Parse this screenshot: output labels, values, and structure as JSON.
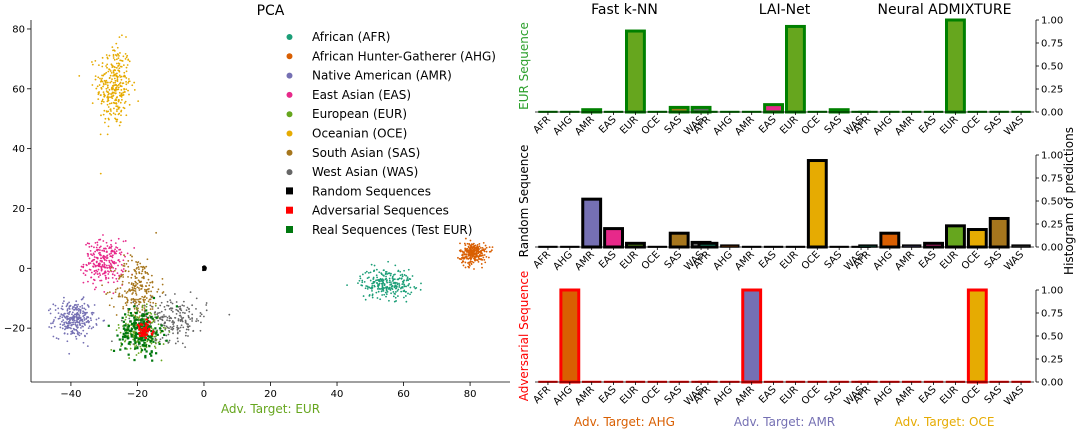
{
  "colors": {
    "AFR": "#1b9e77",
    "AHG": "#d95f02",
    "AMR": "#7570b3",
    "EAS": "#e7298a",
    "EUR": "#66a61e",
    "OCE": "#e6ab02",
    "SAS": "#a6761d",
    "WAS": "#666666",
    "random": "#000000",
    "adversarial": "#ff0000",
    "real": "#00780f"
  },
  "chart_data": [
    {
      "type": "scatter",
      "title": "PCA",
      "xlabel": "Adv. Target: EUR",
      "xlabel_color": "#66a61e",
      "xlim": [
        -52,
        92
      ],
      "ylim": [
        -38,
        83
      ],
      "xticks": [
        -40,
        -20,
        0,
        20,
        40,
        60,
        80
      ],
      "yticks": [
        -20,
        0,
        20,
        40,
        60,
        80
      ],
      "legend_position": "top-right",
      "legend": [
        {
          "label": "African (AFR)",
          "key": "AFR",
          "marker": "circle"
        },
        {
          "label": "African Hunter-Gatherer (AHG)",
          "key": "AHG",
          "marker": "circle"
        },
        {
          "label": "Native American (AMR)",
          "key": "AMR",
          "marker": "circle"
        },
        {
          "label": "East Asian (EAS)",
          "key": "EAS",
          "marker": "circle"
        },
        {
          "label": "European (EUR)",
          "key": "EUR",
          "marker": "circle"
        },
        {
          "label": "Oceanian (OCE)",
          "key": "OCE",
          "marker": "circle"
        },
        {
          "label": "South Asian (SAS)",
          "key": "SAS",
          "marker": "circle"
        },
        {
          "label": "West Asian (WAS)",
          "key": "WAS",
          "marker": "circle"
        },
        {
          "label": "Random Sequences",
          "key": "random",
          "marker": "square"
        },
        {
          "label": "Adversarial Sequences",
          "key": "adversarial",
          "marker": "square"
        },
        {
          "label": "Real Sequences (Test EUR)",
          "key": "real",
          "marker": "square"
        }
      ],
      "clusters": [
        {
          "key": "OCE",
          "cx": -27,
          "cy": 61,
          "sx": 2.6,
          "sy": 7,
          "n": 320
        },
        {
          "key": "EAS",
          "cx": -30,
          "cy": 2,
          "sx": 3,
          "sy": 3.6,
          "n": 260
        },
        {
          "key": "AMR",
          "cx": -39,
          "cy": -17,
          "sx": 3,
          "sy": 3,
          "n": 280
        },
        {
          "key": "SAS",
          "cx": -20,
          "cy": -7,
          "sx": 3.4,
          "sy": 5.5,
          "n": 240
        },
        {
          "key": "WAS",
          "cx": -10,
          "cy": -17,
          "sx": 5.5,
          "sy": 3.5,
          "n": 240
        },
        {
          "key": "EUR",
          "cx": -19,
          "cy": -21,
          "sx": 3,
          "sy": 3.4,
          "n": 260
        },
        {
          "key": "AFR",
          "cx": 55,
          "cy": -5,
          "sx": 4,
          "sy": 2.5,
          "n": 260
        },
        {
          "key": "AHG",
          "cx": 81,
          "cy": 5,
          "sx": 2,
          "sy": 1.8,
          "n": 280
        },
        {
          "key": "real",
          "cx": -19,
          "cy": -21,
          "sx": 3,
          "sy": 3.8,
          "n": 180
        },
        {
          "key": "adversarial",
          "cx": -18,
          "cy": -21,
          "sx": 1.2,
          "sy": 1.4,
          "n": 45
        },
        {
          "key": "random",
          "cx": 0,
          "cy": 0,
          "sx": 0.3,
          "sy": 0.3,
          "n": 30
        }
      ]
    },
    {
      "type": "bar",
      "grid_layout": "3x3",
      "categories": [
        "AFR",
        "AHG",
        "AMR",
        "EAS",
        "EUR",
        "OCE",
        "SAS",
        "WAS"
      ],
      "ylim": [
        0,
        1
      ],
      "yticks": [
        "0.00",
        "0.25",
        "0.50",
        "0.75",
        "1.00"
      ],
      "right_axis_label": "Histogram of predictions",
      "columns": [
        {
          "title": "Fast k-NN",
          "xlabel": "Adv. Target: AHG",
          "xlabel_color": "#d95f02"
        },
        {
          "title": "LAI-Net",
          "xlabel": "Adv. Target: AMR",
          "xlabel_color": "#7570b3"
        },
        {
          "title": "Neural ADMIXTURE",
          "xlabel": "Adv. Target: OCE",
          "xlabel_color": "#e6ab02"
        }
      ],
      "rows": [
        {
          "label": "EUR Sequence",
          "label_color": "#2ca02c",
          "edge_color": "#008000",
          "values": [
            [
              0.005,
              0.005,
              0.025,
              0.005,
              0.88,
              0.005,
              0.05,
              0.05
            ],
            [
              0.005,
              0.005,
              0.005,
              0.08,
              0.93,
              0.005,
              0.025,
              0.005
            ],
            [
              0.005,
              0.005,
              0.005,
              0.005,
              1.0,
              0.005,
              0.005,
              0.005
            ]
          ]
        },
        {
          "label": "Random Sequence",
          "label_color": "#000000",
          "edge_color": "#000000",
          "values": [
            [
              0.005,
              0.005,
              0.52,
              0.2,
              0.04,
              0.005,
              0.15,
              0.05
            ],
            [
              0.04,
              0.02,
              0.005,
              0.005,
              0.005,
              0.94,
              0.005,
              0.005
            ],
            [
              0.02,
              0.15,
              0.02,
              0.04,
              0.23,
              0.19,
              0.31,
              0.02
            ]
          ]
        },
        {
          "label": "Adversarial Sequence",
          "label_color": "#ff0000",
          "edge_color": "#ff0000",
          "values": [
            [
              0.005,
              1.0,
              0.005,
              0.005,
              0.005,
              0.005,
              0.005,
              0.005
            ],
            [
              0.005,
              0.005,
              1.0,
              0.005,
              0.005,
              0.005,
              0.005,
              0.005
            ],
            [
              0.005,
              0.005,
              0.005,
              0.005,
              0.005,
              1.0,
              0.005,
              0.005
            ]
          ]
        }
      ]
    }
  ]
}
